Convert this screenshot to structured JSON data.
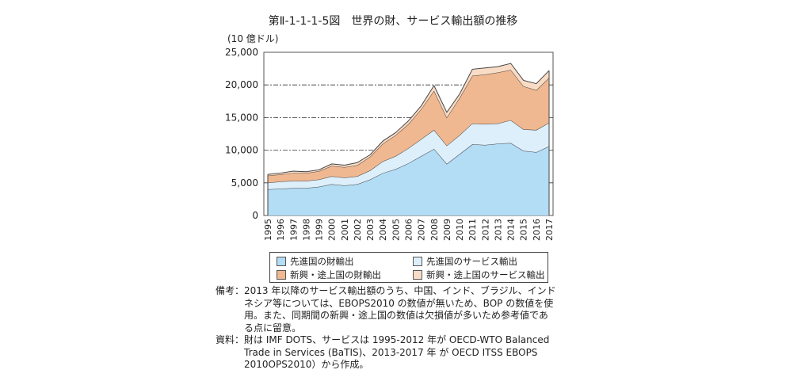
{
  "chart_data": {
    "type": "area",
    "stacked": true,
    "title": "第Ⅱ-1-1-1-5図　世界の財、サービス輸出額の推移",
    "ylabel": "(10 億ドル)",
    "xlabel": "",
    "ylim": [
      0,
      25000
    ],
    "yticks": [
      "0",
      "5,000",
      "10,000",
      "15,000",
      "20,000",
      "25,000"
    ],
    "ytick_values": [
      0,
      5000,
      10000,
      15000,
      20000,
      25000
    ],
    "grid": true,
    "legend_position": "bottom",
    "categories": [
      "1995",
      "1996",
      "1997",
      "1998",
      "1999",
      "2000",
      "2001",
      "2002",
      "2003",
      "2004",
      "2005",
      "2006",
      "2007",
      "2008",
      "2009",
      "2010",
      "2011",
      "2012",
      "2013",
      "2014",
      "2015",
      "2016",
      "2017"
    ],
    "series": [
      {
        "name": "先進国の財輸出",
        "color": "#b3dcf5",
        "values": [
          4000,
          4100,
          4200,
          4200,
          4400,
          4800,
          4600,
          4800,
          5500,
          6500,
          7100,
          8000,
          9100,
          10200,
          7900,
          9400,
          10900,
          10800,
          11000,
          11100,
          9900,
          9700,
          10600
        ]
      },
      {
        "name": "先進国のサービス輸出",
        "color": "#ddeffb",
        "values": [
          1000,
          1100,
          1100,
          1100,
          1100,
          1200,
          1200,
          1200,
          1400,
          1800,
          2000,
          2300,
          2600,
          2900,
          2800,
          2900,
          3200,
          3200,
          3100,
          3500,
          3300,
          3400,
          3600
        ]
      },
      {
        "name": "新興・途上国の財輸出",
        "color": "#f0b890",
        "values": [
          1100,
          1100,
          1200,
          1200,
          1300,
          1600,
          1600,
          1700,
          2100,
          2700,
          3200,
          3700,
          4600,
          6000,
          4300,
          5700,
          7300,
          7600,
          7800,
          7700,
          6600,
          6100,
          6900
        ]
      },
      {
        "name": "新興・途上国のサービス輸出",
        "color": "#f9dcc6",
        "values": [
          200,
          200,
          300,
          200,
          200,
          300,
          300,
          400,
          300,
          400,
          400,
          500,
          500,
          800,
          800,
          600,
          1000,
          1000,
          900,
          1000,
          900,
          1000,
          1100
        ]
      }
    ]
  },
  "notes": {
    "label1": "備考：",
    "text1": "2013 年以降のサービス輸出額のうち、中国、インド、ブラジル、インドネシア等については、EBOPS2010 の数値が無いため、BOP の数値を使用。また、同期間の新興・途上国の数値は欠損値が多いため参考値である点に留意。",
    "label2": "資料：",
    "text2": "財は IMF DOTS、サービスは 1995-2012 年が OECD-WTO Balanced Trade in Services (BaTIS)、2013-2017 年 が OECD ITSS EBOPS 2010OPS2010）から作成。"
  }
}
